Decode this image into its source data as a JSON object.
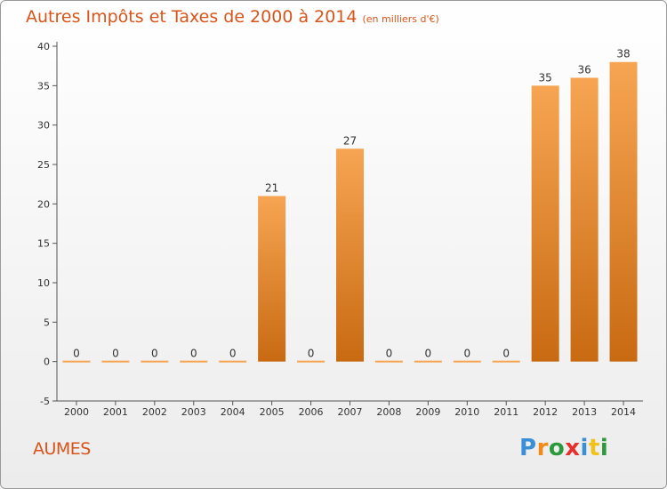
{
  "header": {
    "title": "Autres Impôts et Taxes de 2000 à 2014",
    "subtitle": "(en milliers d'€)"
  },
  "footer": {
    "place": "AUMES",
    "logo_letters": [
      "P",
      "r",
      "o",
      "x",
      "i",
      "t",
      "i"
    ],
    "logo_colors": [
      "#3a8fd6",
      "#f28a1a",
      "#2c9a3c",
      "#e8302a",
      "#3a8fd6",
      "#f2c21a",
      "#2c9a3c"
    ]
  },
  "colors": {
    "bar_top": "#f7a553",
    "bar_bottom": "#c86a12",
    "text_accent": "#d8541a"
  },
  "chart_data": {
    "type": "bar",
    "categories": [
      "2000",
      "2001",
      "2002",
      "2003",
      "2004",
      "2005",
      "2006",
      "2007",
      "2008",
      "2009",
      "2010",
      "2011",
      "2012",
      "2013",
      "2014"
    ],
    "values": [
      0,
      0,
      0,
      0,
      0,
      21,
      0,
      27,
      0,
      0,
      0,
      0,
      35,
      36,
      38
    ],
    "data_labels": [
      "0",
      "0",
      "0",
      "0",
      "0",
      "21",
      "0",
      "27",
      "0",
      "0",
      "0",
      "0",
      "35",
      "36",
      "38"
    ],
    "ylim": [
      -5,
      40
    ],
    "yticks": [
      -5,
      0,
      5,
      10,
      15,
      20,
      25,
      30,
      35,
      40
    ],
    "grid": false,
    "xlabel": "",
    "ylabel": ""
  }
}
